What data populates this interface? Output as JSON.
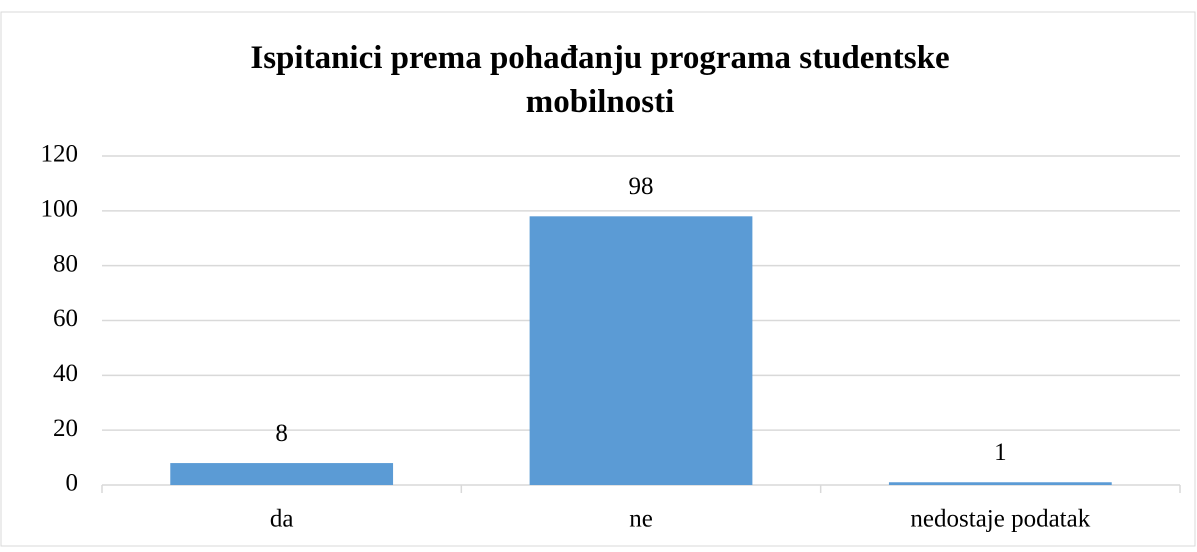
{
  "chart_data": {
    "type": "bar",
    "title": "Ispitanici prema pohađanju programa studentske mobilnosti",
    "categories": [
      "da",
      "ne",
      "nedostaje podatak"
    ],
    "values": [
      8,
      98,
      1
    ],
    "color": "#5b9bd5",
    "ylim": [
      0,
      120
    ],
    "yticks": [
      0,
      20,
      40,
      60,
      80,
      100,
      120
    ],
    "grid": true,
    "data_labels": true
  }
}
